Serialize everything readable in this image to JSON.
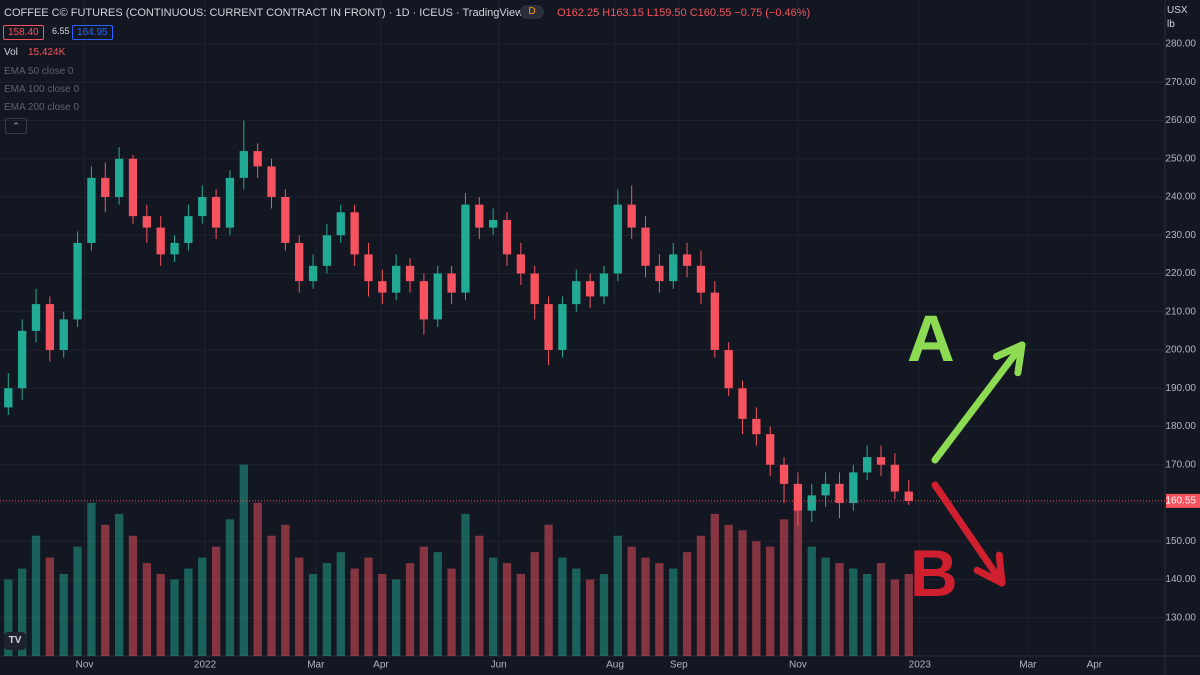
{
  "header": {
    "title": "COFFEE C© FUTURES (CONTINUOUS: CURRENT CONTRACT IN FRONT) · 1D · ICEUS · TradingView",
    "market_badge": "D",
    "ohlc": "O162.25 H163.15 L159.50 C160.55 −0.75 (−0.46%)",
    "bid": "158.40",
    "spread": "6.55",
    "ask": "164.95",
    "vol_label": "Vol",
    "vol_value": "15.424K",
    "indicators": [
      "EMA 50 close 0",
      "EMA 100 close 0",
      "EMA 200 close 0"
    ],
    "currency": "USX",
    "unit": "lb",
    "logo": "TV"
  },
  "chart_data": {
    "type": "candlestick",
    "up_color": "#22ab94",
    "down_color": "#f7525f",
    "grid": true,
    "x": [
      0,
      1,
      2,
      3,
      4,
      5,
      6,
      7,
      8,
      9,
      10,
      11,
      12,
      13,
      14,
      15,
      16,
      17,
      18,
      19,
      20,
      21,
      22,
      23,
      24,
      25,
      26,
      27,
      28,
      29,
      30,
      31,
      32,
      33,
      34,
      35,
      36,
      37,
      38,
      39,
      40,
      41,
      42,
      43,
      44,
      45,
      46,
      47,
      48,
      49,
      50,
      51,
      52,
      53,
      54,
      55,
      56,
      57,
      58,
      59,
      60,
      61,
      62,
      63,
      64,
      65
    ],
    "open": [
      185,
      190,
      205,
      212,
      200,
      208,
      228,
      245,
      240,
      250,
      235,
      232,
      225,
      228,
      235,
      240,
      232,
      245,
      252,
      248,
      240,
      228,
      218,
      222,
      230,
      236,
      225,
      218,
      215,
      222,
      218,
      208,
      220,
      215,
      238,
      232,
      234,
      225,
      220,
      212,
      200,
      212,
      218,
      214,
      220,
      238,
      232,
      222,
      218,
      225,
      222,
      215,
      200,
      190,
      182,
      178,
      170,
      165,
      158,
      162,
      165,
      160,
      168,
      172,
      170,
      163
    ],
    "high": [
      194,
      208,
      216,
      214,
      210,
      231,
      248,
      249,
      253,
      251,
      238,
      235,
      230,
      238,
      243,
      242,
      247,
      260,
      254,
      250,
      242,
      230,
      225,
      233,
      238,
      238,
      228,
      221,
      225,
      224,
      220,
      222,
      222,
      241,
      240,
      237,
      236,
      228,
      222,
      214,
      214,
      221,
      220,
      222,
      242,
      243,
      235,
      225,
      228,
      228,
      226,
      218,
      202,
      192,
      185,
      180,
      172,
      168,
      165,
      168,
      168,
      170,
      175,
      175,
      173,
      166
    ],
    "low": [
      183,
      187,
      202,
      197,
      198,
      206,
      226,
      236,
      238,
      233,
      228,
      222,
      223,
      226,
      233,
      229,
      230,
      242,
      245,
      237,
      226,
      215,
      216,
      220,
      228,
      222,
      214,
      212,
      213,
      215,
      204,
      206,
      212,
      213,
      229,
      230,
      222,
      217,
      208,
      196,
      198,
      210,
      211,
      212,
      218,
      229,
      219,
      215,
      216,
      219,
      212,
      198,
      188,
      178,
      175,
      167,
      160,
      154,
      155,
      159,
      156,
      158,
      166,
      167,
      161,
      159.5
    ],
    "close": [
      190,
      205,
      212,
      200,
      208,
      228,
      245,
      240,
      250,
      235,
      232,
      225,
      228,
      235,
      240,
      232,
      245,
      252,
      248,
      240,
      228,
      218,
      222,
      230,
      236,
      225,
      218,
      215,
      222,
      218,
      208,
      220,
      215,
      238,
      232,
      234,
      225,
      220,
      212,
      200,
      212,
      218,
      214,
      220,
      238,
      232,
      222,
      218,
      225,
      222,
      215,
      200,
      190,
      182,
      178,
      170,
      165,
      158,
      162,
      165,
      160,
      168,
      172,
      170,
      163,
      160.55
    ],
    "volume": [
      14,
      16,
      22,
      18,
      15,
      20,
      28,
      24,
      26,
      22,
      17,
      15,
      14,
      16,
      18,
      20,
      25,
      35,
      28,
      22,
      24,
      18,
      15,
      17,
      19,
      16,
      18,
      15,
      14,
      17,
      20,
      19,
      16,
      26,
      22,
      18,
      17,
      15,
      19,
      24,
      18,
      16,
      14,
      15,
      22,
      20,
      18,
      17,
      16,
      19,
      22,
      26,
      24,
      23,
      21,
      20,
      25,
      28,
      20,
      18,
      17,
      16,
      15,
      17,
      14,
      15
    ],
    "volume_ylim": [
      0,
      120
    ],
    "xlim": [
      -0.6,
      83.5
    ],
    "xticks": [
      {
        "value": 5.5,
        "label": "Nov"
      },
      {
        "value": 14.2,
        "label": "2022"
      },
      {
        "value": 22.2,
        "label": "Mar"
      },
      {
        "value": 26.9,
        "label": "Apr"
      },
      {
        "value": 35.4,
        "label": "Jun"
      },
      {
        "value": 43.8,
        "label": "Aug"
      },
      {
        "value": 48.4,
        "label": "Sep"
      },
      {
        "value": 57,
        "label": "Nov"
      },
      {
        "value": 65.8,
        "label": "2023"
      },
      {
        "value": 73.6,
        "label": "Mar"
      },
      {
        "value": 78.4,
        "label": "Apr"
      }
    ],
    "ylim": [
      120,
      291.5
    ],
    "yticks": [
      {
        "value": 130,
        "label": "130.00"
      },
      {
        "value": 140,
        "label": "140.00"
      },
      {
        "value": 150,
        "label": "150.00"
      },
      {
        "value": 160,
        "label": "160.00"
      },
      {
        "value": 170,
        "label": "170.00"
      },
      {
        "value": 180,
        "label": "180.00"
      },
      {
        "value": 190,
        "label": "190.00"
      },
      {
        "value": 200,
        "label": "200.00"
      },
      {
        "value": 210,
        "label": "210.00"
      },
      {
        "value": 220,
        "label": "220.00"
      },
      {
        "value": 230,
        "label": "230.00"
      },
      {
        "value": 240,
        "label": "240.00"
      },
      {
        "value": 250,
        "label": "250.00"
      },
      {
        "value": 260,
        "label": "260.00"
      },
      {
        "value": 270,
        "label": "270.00"
      },
      {
        "value": 280,
        "label": "280.00"
      }
    ],
    "last_price": {
      "value": 160.55,
      "label": "160.55"
    },
    "annotations": [
      "A",
      "B"
    ]
  }
}
